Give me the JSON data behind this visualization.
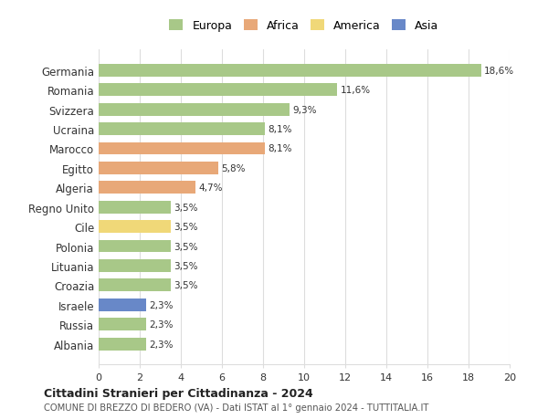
{
  "countries": [
    "Germania",
    "Romania",
    "Svizzera",
    "Ucraina",
    "Marocco",
    "Egitto",
    "Algeria",
    "Regno Unito",
    "Cile",
    "Polonia",
    "Lituania",
    "Croazia",
    "Israele",
    "Russia",
    "Albania"
  ],
  "values": [
    18.6,
    11.6,
    9.3,
    8.1,
    8.1,
    5.8,
    4.7,
    3.5,
    3.5,
    3.5,
    3.5,
    3.5,
    2.3,
    2.3,
    2.3
  ],
  "labels": [
    "18,6%",
    "11,6%",
    "9,3%",
    "8,1%",
    "8,1%",
    "5,8%",
    "4,7%",
    "3,5%",
    "3,5%",
    "3,5%",
    "3,5%",
    "3,5%",
    "2,3%",
    "2,3%",
    "2,3%"
  ],
  "continents": [
    "Europa",
    "Europa",
    "Europa",
    "Europa",
    "Africa",
    "Africa",
    "Africa",
    "Europa",
    "America",
    "Europa",
    "Europa",
    "Europa",
    "Asia",
    "Europa",
    "Europa"
  ],
  "colors": {
    "Europa": "#a8c888",
    "Africa": "#e8a878",
    "America": "#f0d878",
    "Asia": "#6888c8"
  },
  "legend_order": [
    "Europa",
    "Africa",
    "America",
    "Asia"
  ],
  "title": "Cittadini Stranieri per Cittadinanza - 2024",
  "subtitle": "COMUNE DI BREZZO DI BEDERO (VA) - Dati ISTAT al 1° gennaio 2024 - TUTTITALIA.IT",
  "xlim": [
    0,
    20
  ],
  "xticks": [
    0,
    2,
    4,
    6,
    8,
    10,
    12,
    14,
    16,
    18,
    20
  ],
  "background_color": "#ffffff",
  "grid_color": "#dddddd"
}
